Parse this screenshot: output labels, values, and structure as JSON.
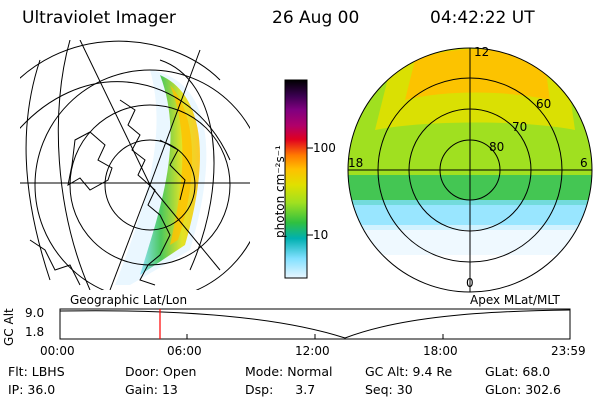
{
  "header": {
    "instrument": "Ultraviolet Imager",
    "date": "26 Aug 00",
    "time": "04:42:22 UT"
  },
  "panels": {
    "left_label": "Geographic Lat/Lon",
    "right_label": "Apex MLat/MLT"
  },
  "colorbar": {
    "unit_label": "photon cm⁻²s⁻¹",
    "ticks": [
      "100",
      "10"
    ],
    "scale": "log",
    "colors": [
      "#000000",
      "#3a0050",
      "#800080",
      "#b0006a",
      "#e00020",
      "#ff7a00",
      "#ffc000",
      "#e0e000",
      "#a0e020",
      "#30c040",
      "#00b0b0",
      "#80e0ff",
      "#e8f6ff"
    ]
  },
  "polar": {
    "mlt_labels": [
      "12",
      "18",
      "6",
      "0"
    ],
    "mlat_labels": [
      "60",
      "70",
      "80"
    ]
  },
  "altitude_plot": {
    "ylabel": "GC Alt",
    "yticks": [
      "9.0",
      "1.8"
    ],
    "xticks": [
      "00:00",
      "06:00",
      "12:00",
      "18:00",
      "23:59"
    ],
    "current_time_marker": "04:42:22",
    "marker_color": "#ff0000"
  },
  "status": {
    "filter": {
      "label": "Flt:",
      "value": "LBHS"
    },
    "ip": {
      "label": "IP:",
      "value": "36.0"
    },
    "door": {
      "label": "Door:",
      "value": "Open"
    },
    "gain": {
      "label": "Gain:",
      "value": "13"
    },
    "mode": {
      "label": "Mode:",
      "value": "Normal"
    },
    "dsp": {
      "label": "Dsp:",
      "value": "3.7"
    },
    "gc_alt": {
      "label": "GC Alt:",
      "value": "9.4 Re"
    },
    "seq": {
      "label": "Seq:",
      "value": "30"
    },
    "glat": {
      "label": "GLat:",
      "value": "68.0"
    },
    "glon": {
      "label": "GLon:",
      "value": "302.6"
    }
  }
}
